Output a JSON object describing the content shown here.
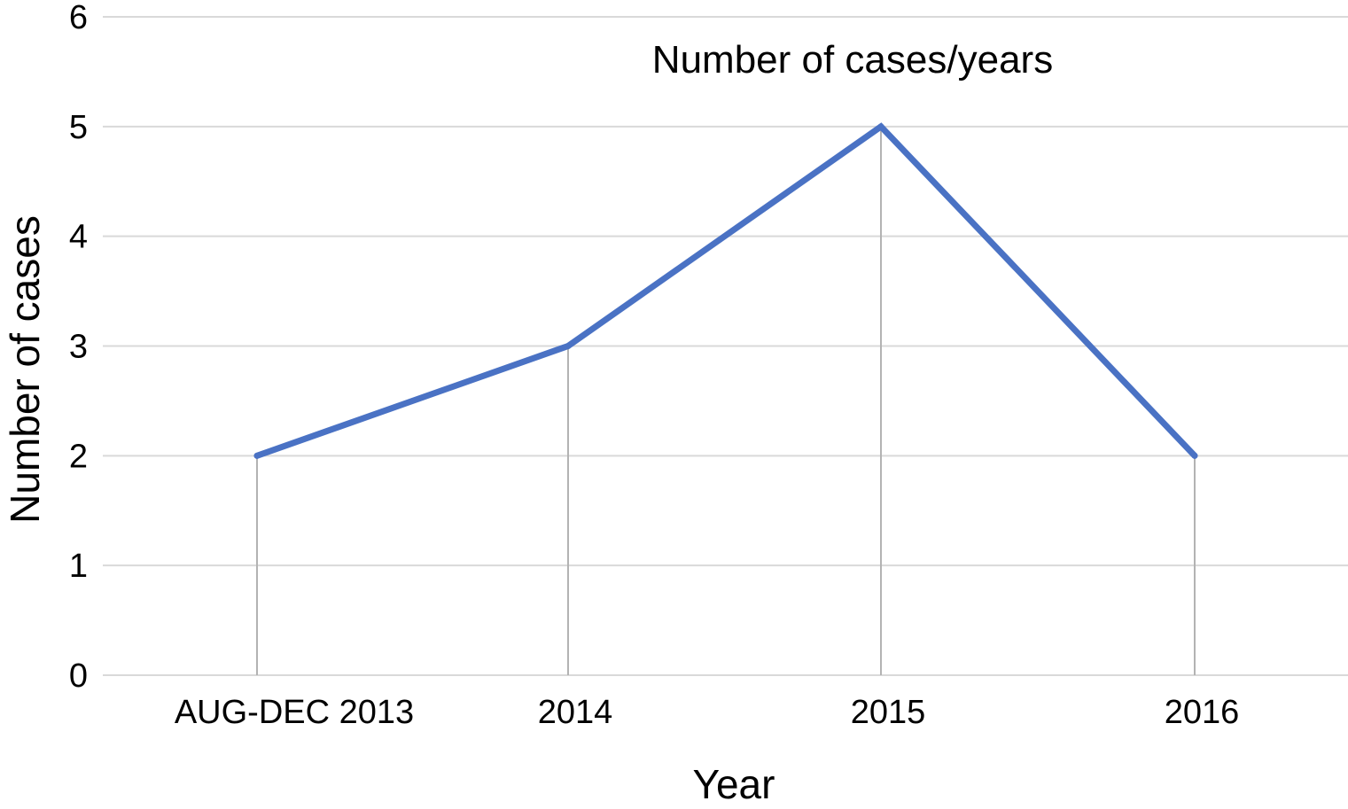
{
  "chart_data": {
    "type": "line",
    "title": "Number of cases/years",
    "xlabel": "Year",
    "ylabel": "Number of cases",
    "categories": [
      "AUG-DEC 2013",
      "2014",
      "2015",
      "2016"
    ],
    "series": [
      {
        "values": [
          2,
          3,
          5,
          2
        ]
      }
    ],
    "ylim": [
      0,
      6
    ],
    "yticks": [
      "0",
      "1",
      "2",
      "3",
      "4",
      "5",
      "6"
    ],
    "grid": true,
    "drop_lines": true,
    "colors": {
      "line": "#4a72c4",
      "grid": "#d9d9d9",
      "drop_line": "#b3b3b3"
    }
  }
}
